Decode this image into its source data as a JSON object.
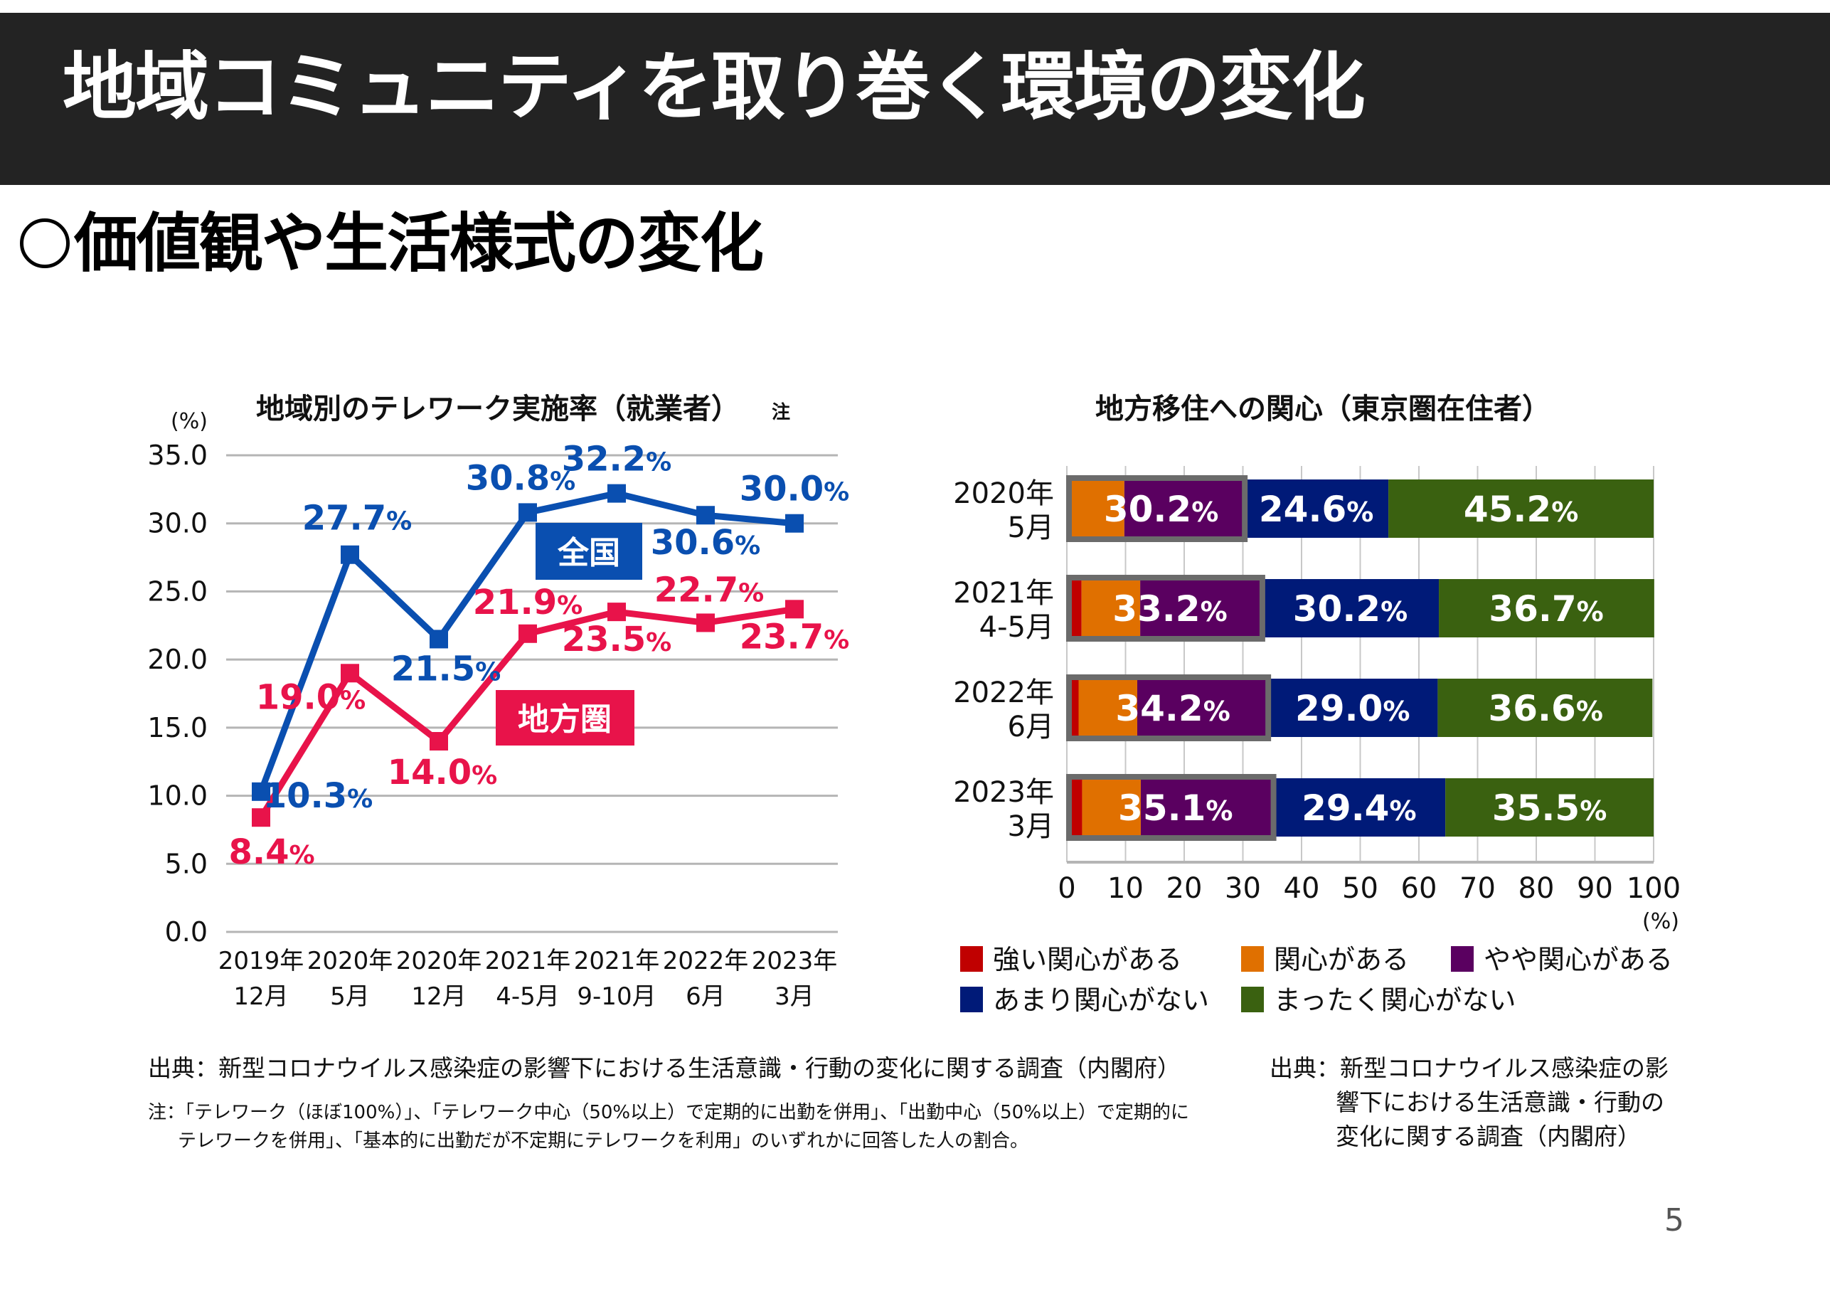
{
  "slide": {
    "title": "地域コミュニティを取り巻く環境の変化",
    "subtitle": "価値観や生活様式の変化",
    "page_number": "5"
  },
  "chart_data": [
    {
      "type": "line",
      "title": "地域別のテレワーク実施率（就業者）",
      "title_note": "注",
      "ylabel": "(%)",
      "xlabel": "",
      "ylim": [
        0,
        35
      ],
      "yticks": [
        "0.0",
        "5.0",
        "10.0",
        "15.0",
        "20.0",
        "25.0",
        "30.0",
        "35.0"
      ],
      "grid": true,
      "categories": [
        [
          "2019年",
          "12月"
        ],
        [
          "2020年",
          "5月"
        ],
        [
          "2020年",
          "12月"
        ],
        [
          "2021年",
          "4-5月"
        ],
        [
          "2021年",
          "9-10月"
        ],
        [
          "2022年",
          "6月"
        ],
        [
          "2023年",
          "3月"
        ]
      ],
      "series": [
        {
          "name": "全国",
          "color": "#0a4fb0",
          "values": [
            10.3,
            27.7,
            21.5,
            30.8,
            32.2,
            30.6,
            30.0
          ],
          "labels": [
            "10.3%",
            "27.7%",
            "21.5%",
            "30.8%",
            "32.2%",
            "30.6%",
            "30.0%"
          ]
        },
        {
          "name": "地方圏",
          "color": "#e8134a",
          "values": [
            8.4,
            19.0,
            14.0,
            21.9,
            23.5,
            22.7,
            23.7
          ],
          "labels": [
            "8.4%",
            "19.0%",
            "14.0%",
            "21.9%",
            "23.5%",
            "22.7%",
            "23.7%"
          ]
        }
      ],
      "legend": "inline-labels"
    },
    {
      "type": "bar",
      "orientation": "horizontal-stacked-100",
      "title": "地方移住への関心（東京圏在住者）",
      "xlim": [
        0,
        100
      ],
      "xticks": [
        "0",
        "10",
        "20",
        "30",
        "40",
        "50",
        "60",
        "70",
        "80",
        "90",
        "100"
      ],
      "xunit": "(%)",
      "grid": true,
      "categories": [
        [
          "2020年",
          "5月"
        ],
        [
          "2021年",
          "4-5月"
        ],
        [
          "2022年",
          "6月"
        ],
        [
          "2023年",
          "3月"
        ]
      ],
      "series": [
        {
          "name": "強い関心がある",
          "color": "#c00000",
          "values": [
            0.7,
            2.5,
            2.0,
            2.6
          ]
        },
        {
          "name": "関心がある",
          "color": "#e07000",
          "values": [
            9.1,
            10.0,
            10.0,
            10.0
          ]
        },
        {
          "name": "やや関心がある",
          "color": "#5a0060",
          "values": [
            20.4,
            20.7,
            22.2,
            22.5
          ]
        },
        {
          "name": "あまり関心がない",
          "color": "#001a78",
          "values": [
            24.6,
            30.2,
            29.0,
            29.4
          ]
        },
        {
          "name": "まったく関心がない",
          "color": "#3a6110",
          "values": [
            45.2,
            36.7,
            36.6,
            35.5
          ]
        }
      ],
      "group_labels": {
        "interested_total": [
          "30.2%",
          "33.2%",
          "34.2%",
          "35.1%"
        ],
        "not_much": [
          "24.6%",
          "30.2%",
          "29.0%",
          "29.4%"
        ],
        "none": [
          "45.2%",
          "36.7%",
          "36.6%",
          "35.5%"
        ]
      },
      "legend": "bottom"
    }
  ],
  "sources": {
    "left": "出典：新型コロナウイルス感染症の影響下における生活意識・行動の変化に関する調査（内閣府）",
    "left_note_line1": "注：「テレワーク（ほぼ100%）」、「テレワーク中心（50%以上）で定期的に出勤を併用」、「出勤中心（50%以上）で定期的に",
    "left_note_line2": "テレワークを併用」、「基本的に出勤だが不定期にテレワークを利用」のいずれかに回答した人の割合。",
    "right_line1": "出典：新型コロナウイルス感染症の影",
    "right_line2": "響下における生活意識・行動の",
    "right_line3": "変化に関する調査（内閣府）"
  }
}
